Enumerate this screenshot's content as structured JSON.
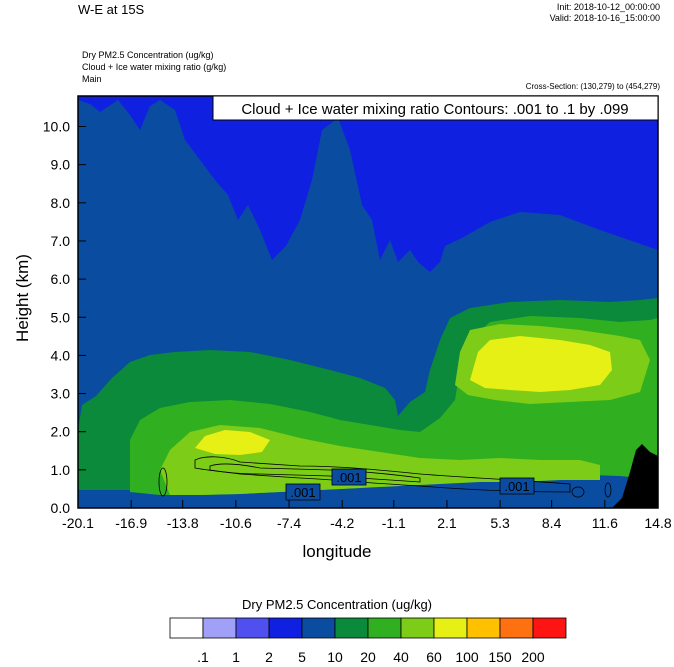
{
  "header": {
    "title": "W-E at 15S",
    "init": "Init: 2018-10-12_00:00:00",
    "valid": "Valid: 2018-10-16_15:00:00",
    "info_lines": [
      "Dry PM2.5 Concentration   (ug/kg)",
      "Cloud + Ice water mixing ratio   (g/kg)",
      "Main"
    ],
    "cross_section": "Cross-Section: (130,279) to (454,279)"
  },
  "chart_data": {
    "type": "heatmap",
    "xlabel": "longitude",
    "ylabel": "Height (km)",
    "x_ticks": [
      "-20.1",
      "-16.9",
      "-13.8",
      "-10.6",
      "-7.4",
      "-4.2",
      "-1.1",
      "2.1",
      "5.3",
      "8.4",
      "11.6",
      "14.8"
    ],
    "y_ticks": [
      "0.0",
      "1.0",
      "2.0",
      "3.0",
      "4.0",
      "5.0",
      "6.0",
      "7.0",
      "8.0",
      "9.0",
      "10.0"
    ],
    "xlim": [
      -20.1,
      14.8
    ],
    "ylim": [
      0,
      10.8
    ],
    "contour_title": "Cloud + Ice water mixing ratio Contours: .001 to .1 by .099",
    "contour_labels": [
      ".001",
      ".001",
      ".001"
    ],
    "colorbar": {
      "title": "Dry PM2.5 Concentration  (ug/kg)",
      "labels": [
        ".1",
        "1",
        "2",
        "5",
        "10",
        "20",
        "40",
        "60",
        "100",
        "150",
        "200"
      ],
      "colors": [
        "#ffffff",
        "#a0a0f8",
        "#5050f0",
        "#1020e0",
        "#0a4da0",
        "#0a8a3a",
        "#30b020",
        "#7ccc18",
        "#e6f014",
        "#ffc000",
        "#ff7010",
        "#ff1414"
      ]
    }
  }
}
